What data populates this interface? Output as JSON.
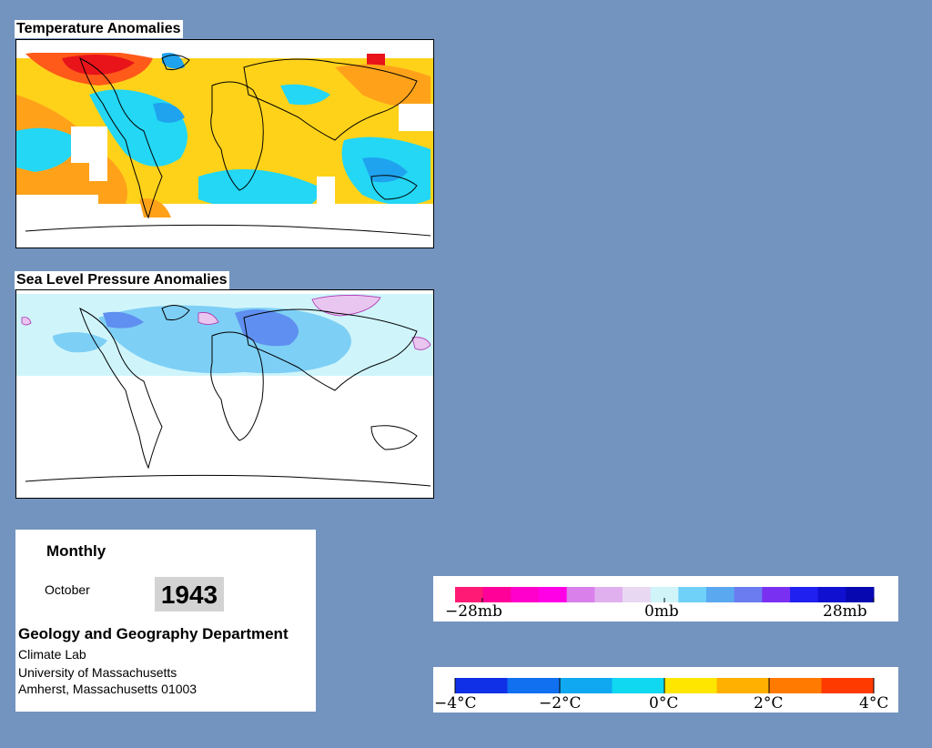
{
  "panels": {
    "temperature": {
      "title": "Temperature Anomalies"
    },
    "pressure": {
      "title": "Sea Level Pressure Anomalies"
    }
  },
  "info": {
    "frequency": "Monthly",
    "month": "October",
    "year": "1943",
    "department": "Geology and Geography Department",
    "lab": "Climate Lab",
    "university": "University of Massachusetts",
    "address": "Amherst, Massachusetts 01003"
  },
  "legends": {
    "pressure": {
      "labels": [
        "−28mb",
        "0mb",
        "28mb"
      ],
      "colors": [
        "#ff1a75",
        "#ff0099",
        "#ff00cc",
        "#ff00e6",
        "#d980ea",
        "#e0b0ee",
        "#e8d8f2",
        "#d0f4f8",
        "#6fd0f8",
        "#5aa8f0",
        "#6a7cf0",
        "#7a30f0",
        "#2020f0",
        "#1010d0",
        "#0808b0"
      ]
    },
    "temperature": {
      "labels": [
        "−4°C",
        "−2°C",
        "0°C",
        "2°C",
        "4°C"
      ],
      "colors": [
        "#1030e8",
        "#1070f0",
        "#10a8f0",
        "#10d8f0",
        "#ffe600",
        "#ffb000",
        "#ff7a00",
        "#ff3a00"
      ]
    }
  },
  "map_colors": {
    "ocean_none": "#ffffff",
    "warm_light": "#ffd21a",
    "warm_med": "#ffa21a",
    "warm_strong": "#ff5a1a",
    "warm_extreme": "#e8141a",
    "cool_light": "#23d7f5",
    "cool_med": "#1fa3ee",
    "slp_light": "#cff5fb",
    "slp_low": "#7ecff5",
    "slp_lower": "#5f8ff0",
    "slp_high": "#e8c6ef"
  }
}
